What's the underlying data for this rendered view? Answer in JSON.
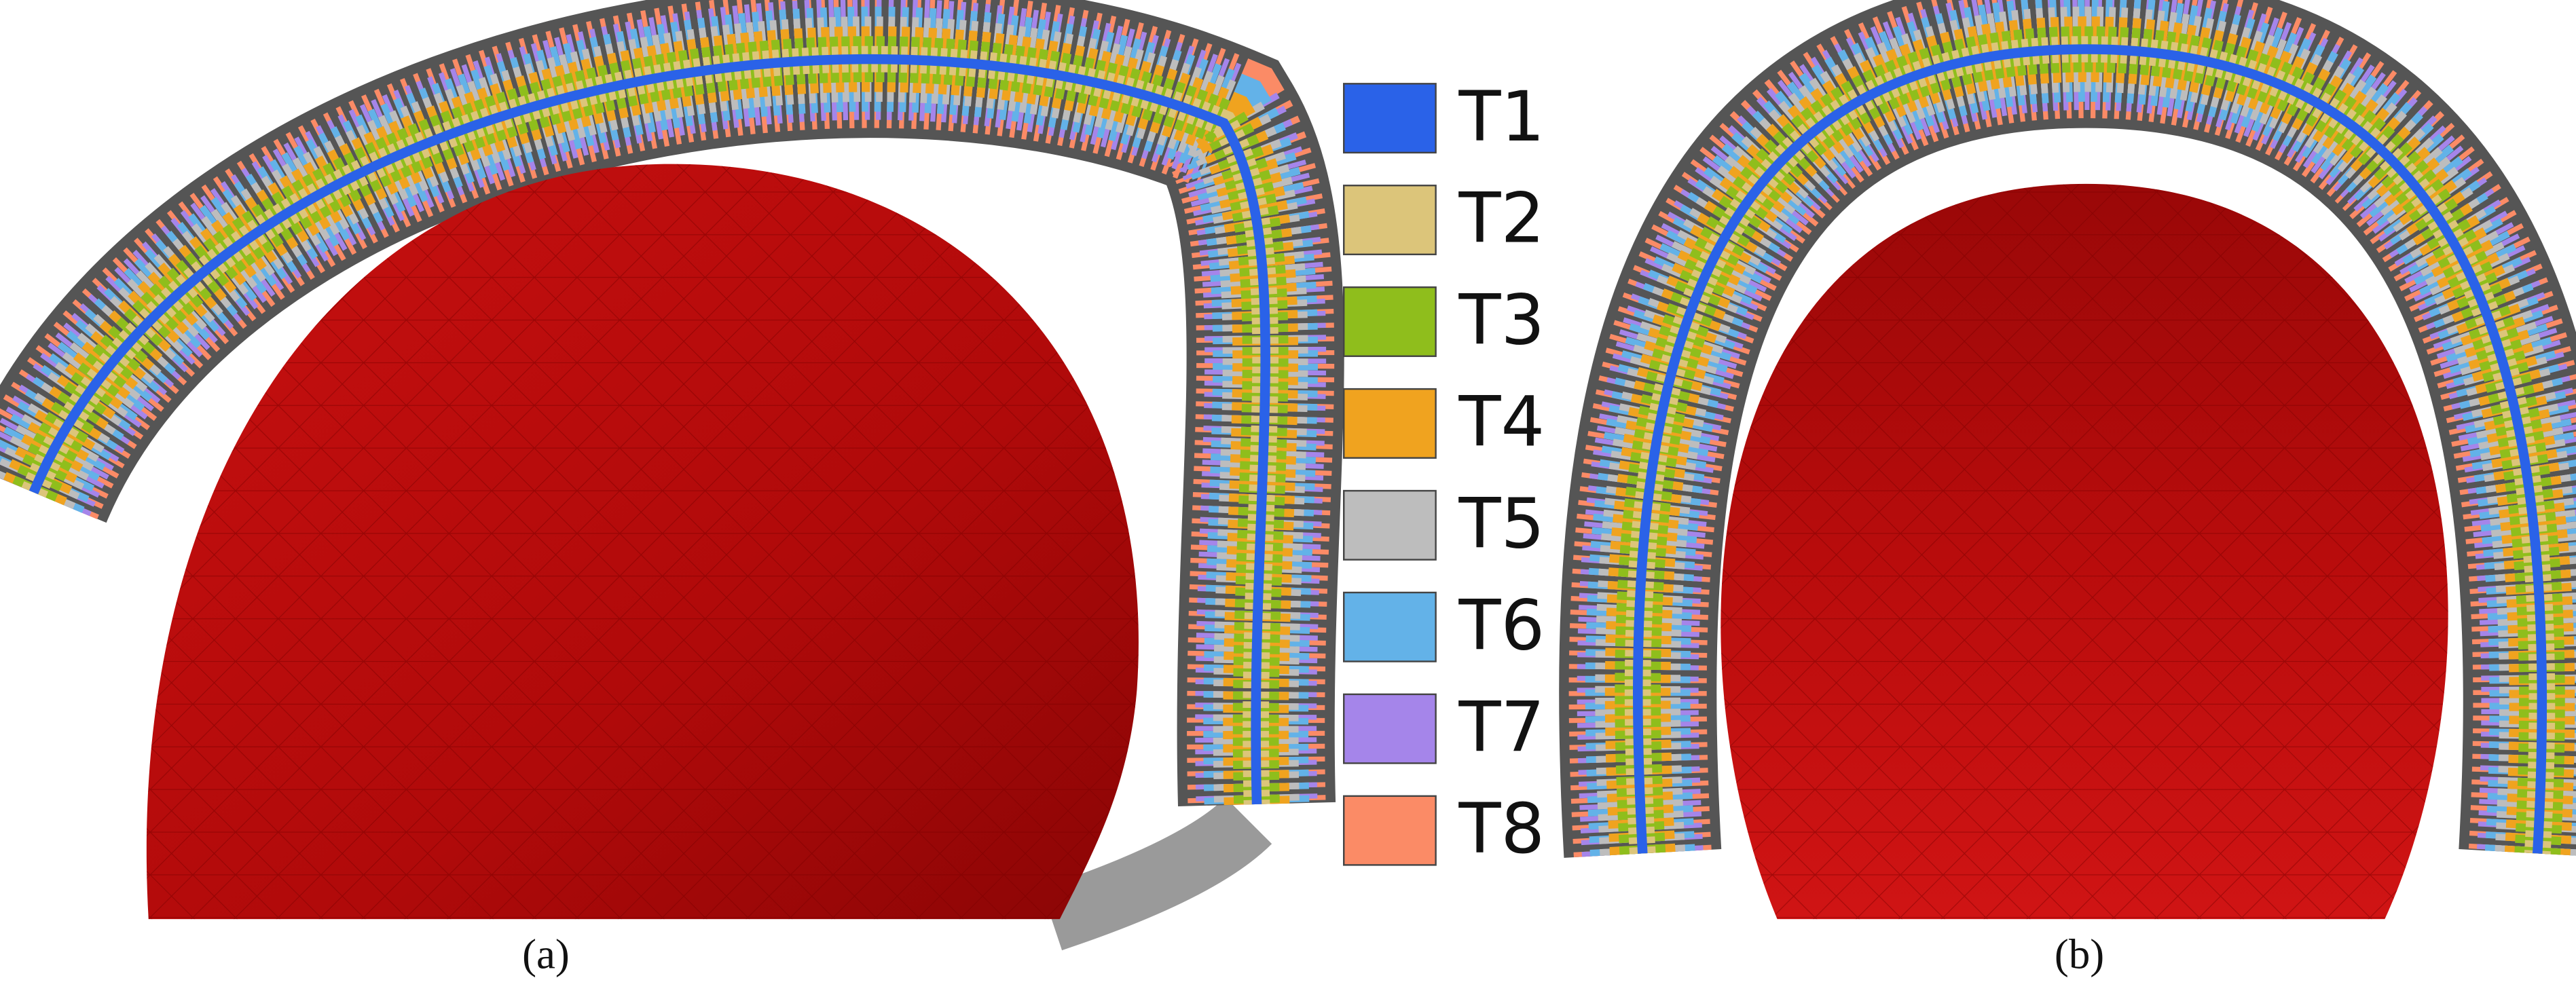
{
  "legend": {
    "items": [
      {
        "label": "T1",
        "color": "#2a62e8"
      },
      {
        "label": "T2",
        "color": "#dcc57a"
      },
      {
        "label": "T3",
        "color": "#8fbe1c"
      },
      {
        "label": "T4",
        "color": "#f0a31f"
      },
      {
        "label": "T5",
        "color": "#bdbdbd"
      },
      {
        "label": "T6",
        "color": "#63b2e8"
      },
      {
        "label": "T7",
        "color": "#a585ea"
      },
      {
        "label": "T8",
        "color": "#fb8b66"
      }
    ]
  },
  "captions": {
    "a": "(a)",
    "b": "(b)"
  }
}
